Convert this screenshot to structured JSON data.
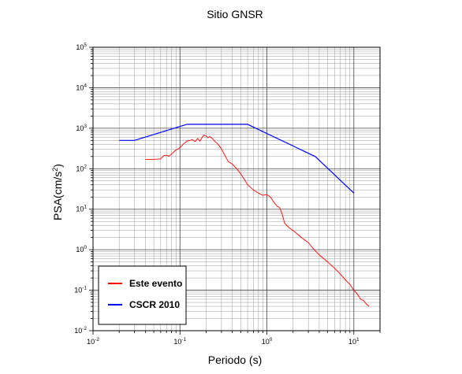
{
  "chart_data": {
    "type": "line",
    "title": "Sitio GNSR",
    "xlabel": "Periodo (s)",
    "ylabel": "PSA(cm/s",
    "ylabel_sup": "2",
    "ylabel_close": ")",
    "xscale": "log",
    "yscale": "log",
    "xlim": [
      0.01,
      20
    ],
    "ylim": [
      0.01,
      100000
    ],
    "x_ticks": [
      {
        "base": "10",
        "exp": "-2",
        "value": 0.01
      },
      {
        "base": "10",
        "exp": "-1",
        "value": 0.1
      },
      {
        "base": "10",
        "exp": "0",
        "value": 1
      },
      {
        "base": "10",
        "exp": "1",
        "value": 10
      }
    ],
    "y_ticks": [
      {
        "base": "10",
        "exp": "-2",
        "value": 0.01
      },
      {
        "base": "10",
        "exp": "-1",
        "value": 0.1
      },
      {
        "base": "10",
        "exp": "0",
        "value": 1
      },
      {
        "base": "10",
        "exp": "1",
        "value": 10
      },
      {
        "base": "10",
        "exp": "2",
        "value": 100
      },
      {
        "base": "10",
        "exp": "3",
        "value": 1000
      },
      {
        "base": "10",
        "exp": "4",
        "value": 10000
      },
      {
        "base": "10",
        "exp": "5",
        "value": 100000
      }
    ],
    "grid": true,
    "legend_position": "bottom-left",
    "series": [
      {
        "name": "Este evento",
        "color": "#ff0000",
        "points": [
          [
            0.04,
            170
          ],
          [
            0.05,
            170
          ],
          [
            0.06,
            175
          ],
          [
            0.065,
            210
          ],
          [
            0.07,
            215
          ],
          [
            0.075,
            205
          ],
          [
            0.08,
            230
          ],
          [
            0.09,
            290
          ],
          [
            0.1,
            330
          ],
          [
            0.11,
            410
          ],
          [
            0.12,
            480
          ],
          [
            0.13,
            500
          ],
          [
            0.14,
            520
          ],
          [
            0.15,
            470
          ],
          [
            0.16,
            560
          ],
          [
            0.17,
            480
          ],
          [
            0.18,
            590
          ],
          [
            0.19,
            680
          ],
          [
            0.2,
            640
          ],
          [
            0.21,
            580
          ],
          [
            0.22,
            620
          ],
          [
            0.24,
            540
          ],
          [
            0.25,
            480
          ],
          [
            0.27,
            420
          ],
          [
            0.3,
            310
          ],
          [
            0.33,
            210
          ],
          [
            0.36,
            150
          ],
          [
            0.4,
            130
          ],
          [
            0.45,
            100
          ],
          [
            0.5,
            75
          ],
          [
            0.55,
            55
          ],
          [
            0.6,
            40
          ],
          [
            0.7,
            30
          ],
          [
            0.8,
            25
          ],
          [
            0.9,
            22
          ],
          [
            1.0,
            23
          ],
          [
            1.1,
            20
          ],
          [
            1.2,
            15
          ],
          [
            1.3,
            12
          ],
          [
            1.4,
            11
          ],
          [
            1.5,
            7.5
          ],
          [
            1.6,
            4.5
          ],
          [
            1.8,
            3.5
          ],
          [
            2.0,
            3.0
          ],
          [
            2.5,
            2.0
          ],
          [
            3.0,
            1.5
          ],
          [
            3.5,
            1.0
          ],
          [
            4.0,
            0.75
          ],
          [
            5.0,
            0.5
          ],
          [
            6.0,
            0.35
          ],
          [
            7.0,
            0.25
          ],
          [
            8.0,
            0.18
          ],
          [
            9.0,
            0.14
          ],
          [
            10.0,
            0.1
          ],
          [
            11.0,
            0.08
          ],
          [
            12.0,
            0.06
          ],
          [
            13.0,
            0.055
          ],
          [
            14.0,
            0.045
          ],
          [
            15.0,
            0.04
          ]
        ]
      },
      {
        "name": "CSCR 2010",
        "color": "#0000ff",
        "points": [
          [
            0.02,
            500
          ],
          [
            0.03,
            500
          ],
          [
            0.12,
            1250
          ],
          [
            0.6,
            1250
          ],
          [
            3.6,
            200
          ],
          [
            10.0,
            25
          ]
        ]
      }
    ]
  }
}
